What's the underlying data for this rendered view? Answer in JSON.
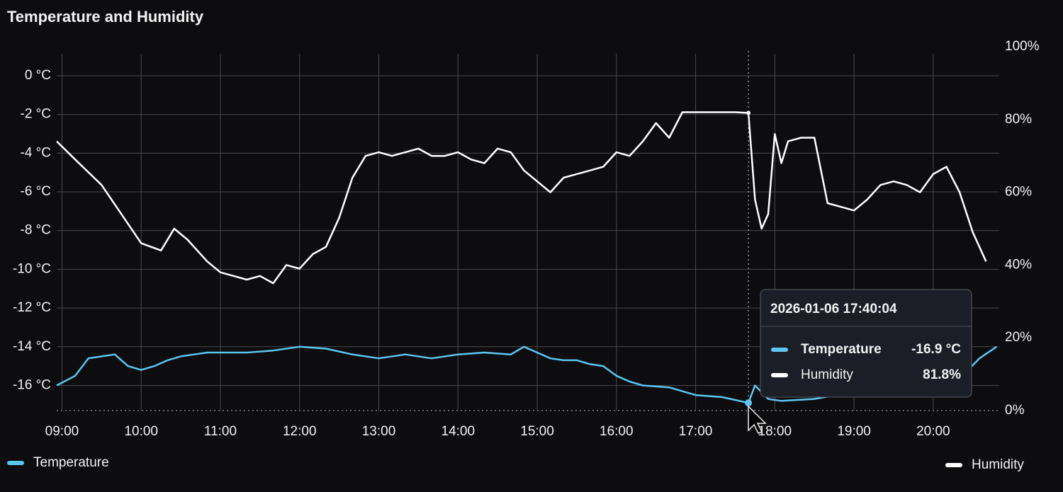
{
  "chart_data": {
    "type": "line",
    "title": "Temperature and Humidity",
    "xlim": [
      "08:56",
      "20:50"
    ],
    "xticks": [
      "09:00",
      "10:00",
      "11:00",
      "12:00",
      "13:00",
      "14:00",
      "15:00",
      "16:00",
      "17:00",
      "18:00",
      "19:00",
      "20:00"
    ],
    "ylim": [
      -17.3,
      1.5
    ],
    "yticks": [
      {
        "value": 0,
        "label": "0 °C"
      },
      {
        "value": -2,
        "label": "-2 °C"
      },
      {
        "value": -4,
        "label": "-4 °C"
      },
      {
        "value": -6,
        "label": "-6 °C"
      },
      {
        "value": -8,
        "label": "-8 °C"
      },
      {
        "value": -10,
        "label": "-10 °C"
      },
      {
        "value": -12,
        "label": "-12 °C"
      },
      {
        "value": -14,
        "label": "-14 °C"
      },
      {
        "value": -16,
        "label": "-16 °C"
      }
    ],
    "y2lim": [
      0,
      100
    ],
    "y2ticks": [
      {
        "value": 100,
        "label": "100%"
      },
      {
        "value": 80,
        "label": "80%"
      },
      {
        "value": 60,
        "label": "60%"
      },
      {
        "value": 40,
        "label": "40%"
      },
      {
        "value": 20,
        "label": "20%"
      },
      {
        "value": 0,
        "label": "0%"
      }
    ],
    "grid": true,
    "series": [
      {
        "name": "Temperature",
        "color": "#5cc6f2",
        "axis": "y",
        "x": [
          "08:56",
          "09:10",
          "09:20",
          "09:30",
          "09:40",
          "09:50",
          "10:00",
          "10:10",
          "10:20",
          "10:30",
          "10:40",
          "10:50",
          "11:00",
          "11:20",
          "11:40",
          "12:00",
          "12:20",
          "12:40",
          "13:00",
          "13:20",
          "13:40",
          "14:00",
          "14:20",
          "14:40",
          "14:50",
          "15:00",
          "15:10",
          "15:20",
          "15:30",
          "15:40",
          "15:50",
          "16:00",
          "16:10",
          "16:20",
          "16:40",
          "17:00",
          "17:20",
          "17:40",
          "17:45",
          "17:55",
          "18:05",
          "18:30",
          "20:25",
          "20:35",
          "20:48"
        ],
        "values": [
          -16.0,
          -15.5,
          -14.6,
          -14.5,
          -14.4,
          -15.0,
          -15.2,
          -15.0,
          -14.7,
          -14.5,
          -14.4,
          -14.3,
          -14.3,
          -14.3,
          -14.2,
          -14.0,
          -14.1,
          -14.4,
          -14.6,
          -14.4,
          -14.6,
          -14.4,
          -14.3,
          -14.4,
          -14.0,
          -14.3,
          -14.6,
          -14.7,
          -14.7,
          -14.9,
          -15.0,
          -15.5,
          -15.8,
          -16.0,
          -16.1,
          -16.5,
          -16.6,
          -16.9,
          -16.0,
          -16.7,
          -16.8,
          -16.7,
          -15.3,
          -14.6,
          -14.0
        ]
      },
      {
        "name": "Humidity",
        "color": "#ffffff",
        "axis": "y2",
        "x": [
          "08:56",
          "09:10",
          "09:30",
          "09:45",
          "10:00",
          "10:15",
          "10:25",
          "10:35",
          "10:50",
          "11:00",
          "11:10",
          "11:20",
          "11:30",
          "11:40",
          "11:50",
          "12:00",
          "12:10",
          "12:20",
          "12:30",
          "12:40",
          "12:50",
          "13:00",
          "13:10",
          "13:20",
          "13:30",
          "13:40",
          "13:50",
          "14:00",
          "14:10",
          "14:20",
          "14:30",
          "14:40",
          "14:50",
          "15:00",
          "15:10",
          "15:20",
          "15:30",
          "15:40",
          "15:50",
          "16:00",
          "16:10",
          "16:20",
          "16:30",
          "16:40",
          "16:50",
          "17:00",
          "17:10",
          "17:20",
          "17:30",
          "17:40",
          "17:45",
          "17:50",
          "17:55",
          "18:00",
          "18:05",
          "18:10",
          "18:20",
          "18:30",
          "18:40",
          "18:50",
          "19:00",
          "19:10",
          "19:20",
          "19:30",
          "19:40",
          "19:50",
          "20:00",
          "20:10",
          "20:20",
          "20:30",
          "20:40"
        ],
        "values": [
          74,
          69,
          62,
          54,
          46,
          44,
          50,
          47,
          41,
          38,
          37,
          36,
          37,
          35,
          40,
          39,
          43,
          45,
          53,
          64,
          70,
          71,
          70,
          71,
          72,
          70,
          70,
          71,
          69,
          68,
          72,
          71,
          66,
          63,
          60,
          64,
          65,
          66,
          67,
          71,
          70,
          74,
          79,
          75,
          82,
          82,
          82,
          82,
          82,
          81.8,
          58,
          50,
          54,
          76,
          68,
          74,
          75,
          75,
          57,
          56,
          55,
          58,
          62,
          63,
          62,
          60,
          65,
          67,
          60,
          49,
          41
        ]
      }
    ],
    "tooltip": {
      "x": "17:40",
      "title": "2026-01-06 17:40:04",
      "values": [
        -16.9,
        81.8
      ],
      "value_labels": [
        "-16.9 °C",
        "81.8%"
      ]
    }
  }
}
